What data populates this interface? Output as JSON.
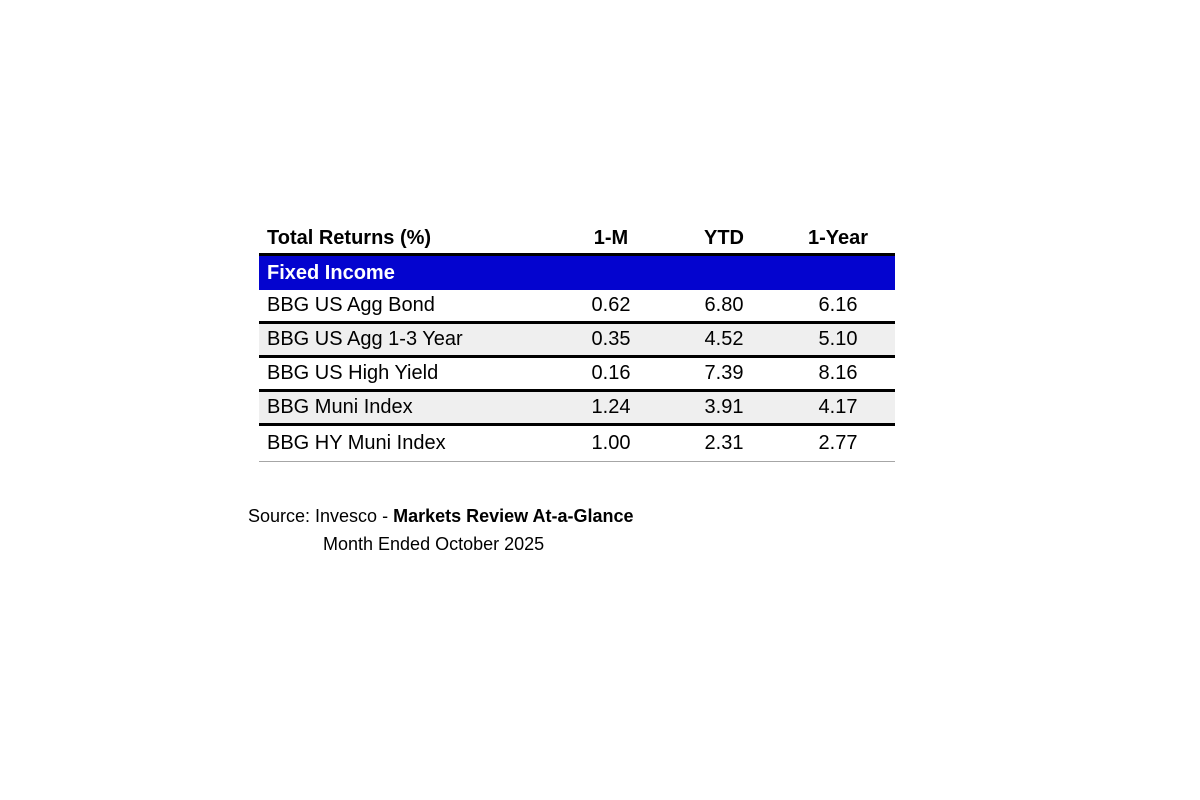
{
  "table": {
    "title": "Total Returns (%)",
    "columns": [
      "1-M",
      "YTD",
      "1-Year"
    ],
    "section": "Fixed Income",
    "rows": [
      {
        "label": "BBG US Agg Bond",
        "values": [
          "0.62",
          "6.80",
          "6.16"
        ]
      },
      {
        "label": "BBG US Agg 1-3 Year",
        "values": [
          "0.35",
          "4.52",
          "5.10"
        ]
      },
      {
        "label": "BBG US High Yield",
        "values": [
          "0.16",
          "7.39",
          "8.16"
        ]
      },
      {
        "label": "BBG Muni Index",
        "values": [
          "1.24",
          "3.91",
          "4.17"
        ]
      },
      {
        "label": "BBG HY Muni Index",
        "values": [
          "1.00",
          "2.31",
          "2.77"
        ]
      }
    ]
  },
  "source": {
    "prefix": "Source: Invesco - ",
    "publication": "Markets Review At-a-Glance",
    "period": "Month Ended October 2025"
  },
  "colors": {
    "section_blue": "#0404CF",
    "alt_row_gray": "#EFEFEF",
    "separator_black": "#000000",
    "bottom_border_gray": "#A6A6A6",
    "background": "#FFFFFF"
  },
  "chart_data": {
    "type": "table",
    "title": "Total Returns (%)",
    "columns": [
      "1-M",
      "YTD",
      "1-Year"
    ],
    "sections": [
      {
        "name": "Fixed Income",
        "rows": [
          {
            "label": "BBG US Agg Bond",
            "values": [
              0.62,
              6.8,
              6.16
            ]
          },
          {
            "label": "BBG US Agg 1-3 Year",
            "values": [
              0.35,
              4.52,
              5.1
            ]
          },
          {
            "label": "BBG US High Yield",
            "values": [
              0.16,
              7.39,
              8.16
            ]
          },
          {
            "label": "BBG Muni Index",
            "values": [
              1.24,
              3.91,
              4.17
            ]
          },
          {
            "label": "BBG HY Muni Index",
            "values": [
              1.0,
              2.31,
              2.77
            ]
          }
        ]
      }
    ],
    "source": "Source: Invesco - Markets Review At-a-Glance, Month Ended October 2025"
  }
}
